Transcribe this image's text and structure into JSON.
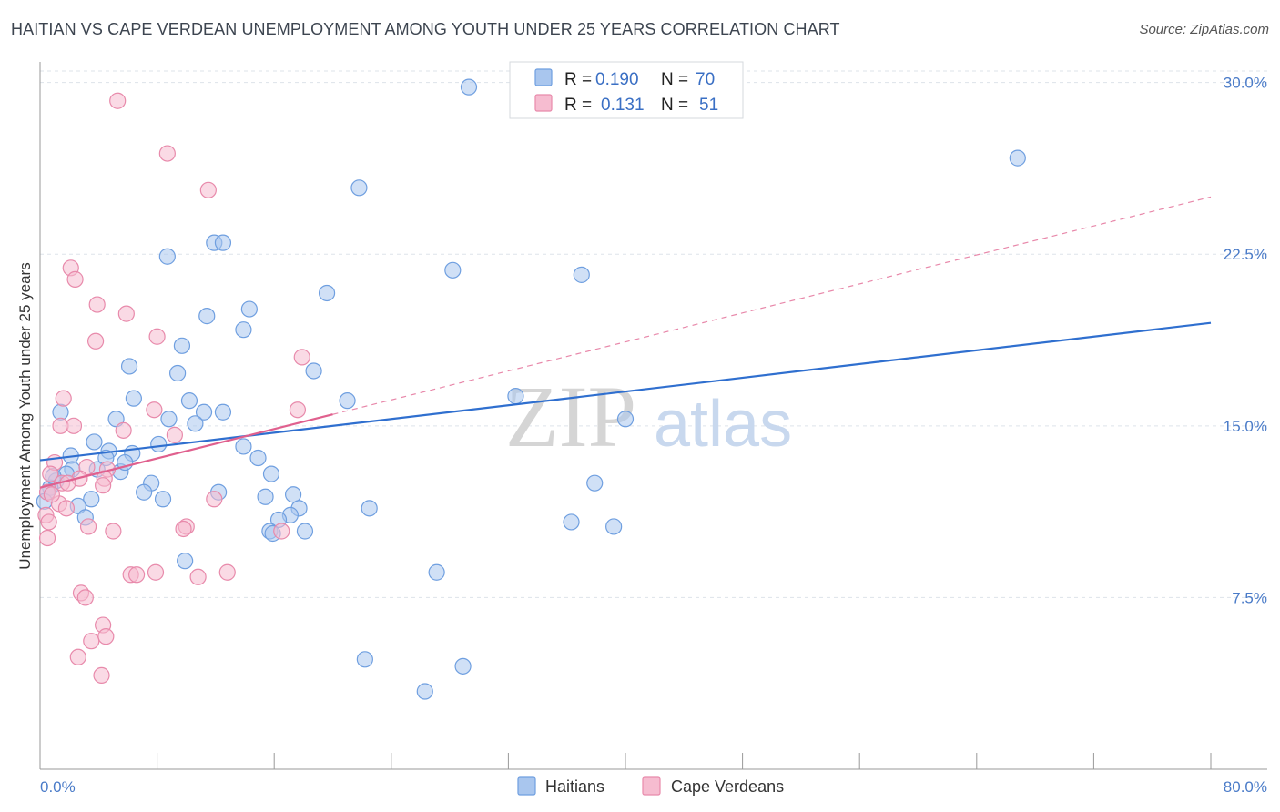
{
  "title": "HAITIAN VS CAPE VERDEAN UNEMPLOYMENT AMONG YOUTH UNDER 25 YEARS CORRELATION CHART",
  "source": "Source: ZipAtlas.com",
  "watermark": {
    "zip": "ZIP",
    "atlas": "atlas"
  },
  "colors": {
    "blue_fill": "#a9c6ee",
    "blue_stroke": "#6f9fe0",
    "blue_line": "#2f6fcf",
    "pink_fill": "#f6bcd0",
    "pink_stroke": "#e88aab",
    "pink_line": "#e0608e",
    "grid": "#dde3ea"
  },
  "legend": {
    "rows": [
      {
        "r_label": "R =",
        "r_value": "0.190",
        "n_label": "N =",
        "n_value": "70"
      },
      {
        "r_label": "R =",
        "r_value": "0.131",
        "n_label": "N =",
        "n_value": "51"
      }
    ]
  },
  "chart_data": {
    "type": "scatter",
    "title": "HAITIAN VS CAPE VERDEAN UNEMPLOYMENT AMONG YOUTH UNDER 25 YEARS CORRELATION CHART",
    "xlabel": "",
    "ylabel": "Unemployment Among Youth under 25 years",
    "xlim": [
      0,
      80
    ],
    "ylim": [
      0,
      30.9
    ],
    "x_tick_labels": [
      "0.0%",
      "80.0%"
    ],
    "y_ticks": [
      7.5,
      15.0,
      22.5,
      30.0
    ],
    "y_tick_labels": [
      "7.5%",
      "15.0%",
      "22.5%",
      "30.0%"
    ],
    "legend_position": "top-center",
    "series": [
      {
        "name": "Haitians",
        "trend": {
          "x0": 0,
          "y0": 13.5,
          "x1": 80,
          "y1": 19.5,
          "style": "solid"
        },
        "points": [
          [
            29.3,
            29.8
          ],
          [
            66.8,
            26.7
          ],
          [
            21.8,
            25.4
          ],
          [
            11.9,
            23.0
          ],
          [
            12.5,
            23.0
          ],
          [
            8.7,
            22.4
          ],
          [
            28.2,
            21.8
          ],
          [
            37.0,
            21.6
          ],
          [
            19.6,
            20.8
          ],
          [
            14.3,
            20.1
          ],
          [
            11.4,
            19.8
          ],
          [
            13.9,
            19.2
          ],
          [
            9.7,
            18.5
          ],
          [
            6.1,
            17.6
          ],
          [
            18.7,
            17.4
          ],
          [
            9.4,
            17.3
          ],
          [
            6.4,
            16.2
          ],
          [
            10.2,
            16.1
          ],
          [
            21.0,
            16.1
          ],
          [
            32.5,
            16.3
          ],
          [
            1.4,
            15.6
          ],
          [
            11.2,
            15.6
          ],
          [
            12.5,
            15.6
          ],
          [
            10.6,
            15.1
          ],
          [
            5.2,
            15.3
          ],
          [
            8.8,
            15.3
          ],
          [
            40.0,
            15.3
          ],
          [
            3.7,
            14.3
          ],
          [
            8.1,
            14.2
          ],
          [
            13.9,
            14.1
          ],
          [
            4.7,
            13.9
          ],
          [
            2.1,
            13.7
          ],
          [
            6.3,
            13.8
          ],
          [
            4.5,
            13.6
          ],
          [
            14.9,
            13.6
          ],
          [
            3.9,
            13.1
          ],
          [
            2.2,
            13.1
          ],
          [
            5.5,
            13.0
          ],
          [
            15.8,
            12.9
          ],
          [
            1.1,
            12.6
          ],
          [
            7.6,
            12.5
          ],
          [
            37.9,
            12.5
          ],
          [
            0.7,
            12.3
          ],
          [
            0.5,
            12.1
          ],
          [
            7.1,
            12.1
          ],
          [
            12.2,
            12.1
          ],
          [
            17.3,
            12.0
          ],
          [
            8.4,
            11.8
          ],
          [
            15.4,
            11.9
          ],
          [
            3.5,
            11.8
          ],
          [
            2.6,
            11.5
          ],
          [
            17.7,
            11.4
          ],
          [
            22.5,
            11.4
          ],
          [
            17.1,
            11.1
          ],
          [
            3.1,
            11.0
          ],
          [
            16.3,
            10.9
          ],
          [
            36.3,
            10.8
          ],
          [
            39.2,
            10.6
          ],
          [
            15.7,
            10.4
          ],
          [
            18.1,
            10.4
          ],
          [
            15.9,
            10.3
          ],
          [
            9.9,
            9.1
          ],
          [
            27.1,
            8.6
          ],
          [
            22.2,
            4.8
          ],
          [
            28.9,
            4.5
          ],
          [
            26.3,
            3.4
          ],
          [
            0.3,
            11.7
          ],
          [
            5.8,
            13.4
          ],
          [
            1.8,
            12.9
          ],
          [
            0.9,
            12.8
          ]
        ]
      },
      {
        "name": "Cape Verdeans",
        "trend": {
          "x0": 0,
          "y0": 12.3,
          "x1": 20.0,
          "y1": 15.5,
          "style": "solid",
          "extension": {
            "x1": 80,
            "y1": 25.0,
            "style": "dashed"
          }
        },
        "points": [
          [
            5.3,
            29.2
          ],
          [
            8.7,
            26.9
          ],
          [
            11.5,
            25.3
          ],
          [
            2.1,
            21.9
          ],
          [
            2.4,
            21.4
          ],
          [
            3.9,
            20.3
          ],
          [
            5.9,
            19.9
          ],
          [
            3.8,
            18.7
          ],
          [
            8.0,
            18.9
          ],
          [
            17.9,
            18.0
          ],
          [
            1.6,
            16.2
          ],
          [
            7.8,
            15.7
          ],
          [
            17.6,
            15.7
          ],
          [
            1.4,
            15.0
          ],
          [
            2.3,
            15.0
          ],
          [
            5.7,
            14.8
          ],
          [
            9.2,
            14.6
          ],
          [
            1.0,
            13.4
          ],
          [
            3.2,
            13.2
          ],
          [
            4.6,
            13.1
          ],
          [
            0.7,
            12.9
          ],
          [
            2.7,
            12.7
          ],
          [
            4.4,
            12.7
          ],
          [
            1.5,
            12.5
          ],
          [
            1.9,
            12.5
          ],
          [
            4.3,
            12.4
          ],
          [
            0.5,
            12.1
          ],
          [
            11.9,
            11.8
          ],
          [
            1.3,
            11.6
          ],
          [
            1.8,
            11.4
          ],
          [
            0.4,
            11.1
          ],
          [
            0.6,
            10.8
          ],
          [
            3.3,
            10.6
          ],
          [
            10.0,
            10.6
          ],
          [
            9.8,
            10.5
          ],
          [
            5.0,
            10.4
          ],
          [
            16.5,
            10.4
          ],
          [
            0.5,
            10.1
          ],
          [
            7.9,
            8.6
          ],
          [
            12.8,
            8.6
          ],
          [
            6.2,
            8.5
          ],
          [
            6.6,
            8.5
          ],
          [
            10.8,
            8.4
          ],
          [
            2.8,
            7.7
          ],
          [
            3.1,
            7.5
          ],
          [
            4.3,
            6.3
          ],
          [
            4.5,
            5.8
          ],
          [
            3.5,
            5.6
          ],
          [
            2.6,
            4.9
          ],
          [
            4.2,
            4.1
          ],
          [
            0.8,
            12.0
          ]
        ]
      }
    ]
  }
}
